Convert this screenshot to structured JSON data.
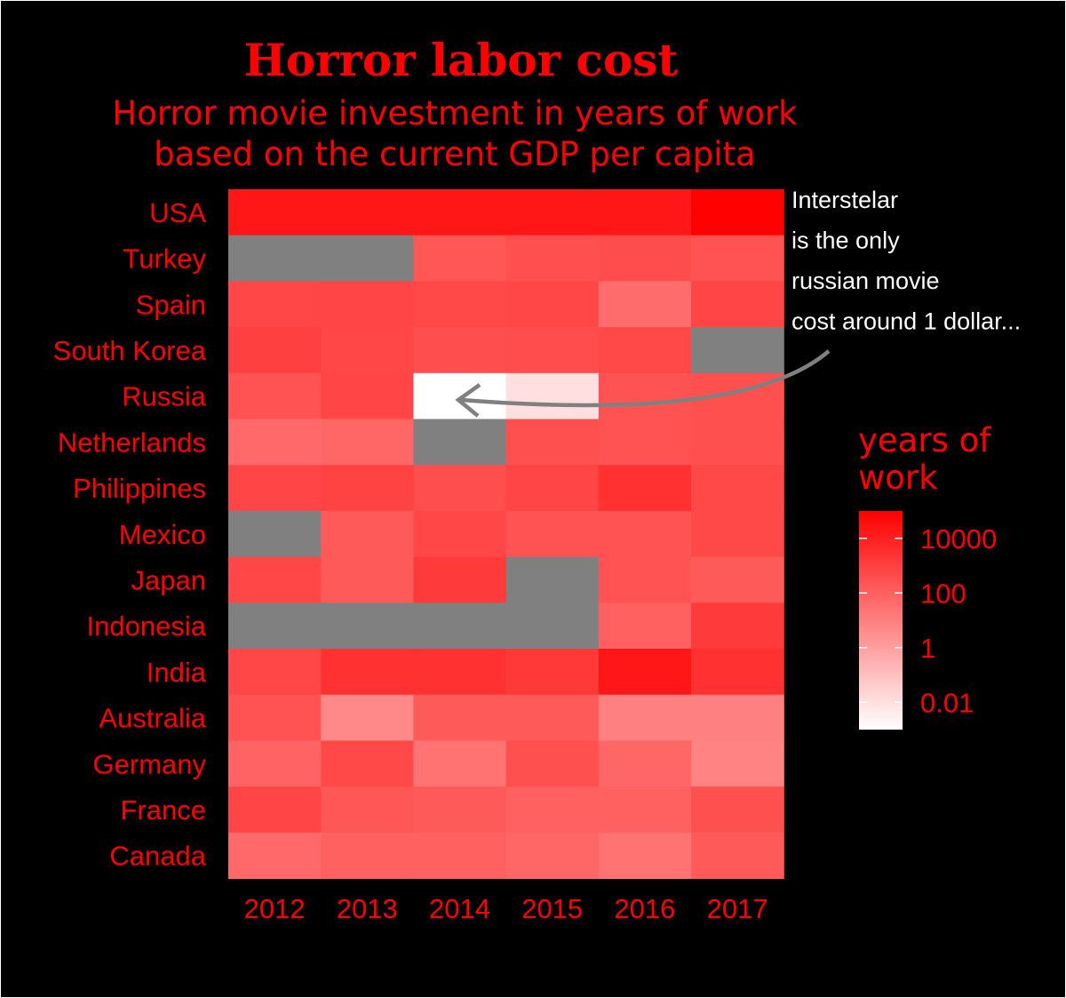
{
  "chart_data": {
    "type": "heatmap",
    "title": "Horror labor cost",
    "subtitle_lines": [
      "Horror movie investment in years of work",
      "based on the current GDP per capita"
    ],
    "x_categories": [
      "2012",
      "2013",
      "2014",
      "2015",
      "2016",
      "2017"
    ],
    "y_categories": [
      "USA",
      "Turkey",
      "Spain",
      "South Korea",
      "Russia",
      "Netherlands",
      "Philippines",
      "Mexico",
      "Japan",
      "Indonesia",
      "India",
      "Australia",
      "Germany",
      "France",
      "Canada"
    ],
    "values": [
      [
        20000,
        20000,
        20000,
        20000,
        20000,
        90000
      ],
      [
        null,
        null,
        200,
        300,
        400,
        250
      ],
      [
        600,
        700,
        500,
        600,
        40,
        700
      ],
      [
        1000,
        600,
        350,
        400,
        500,
        null
      ],
      [
        250,
        700,
        0.001,
        0.01,
        250,
        300
      ],
      [
        50,
        60,
        null,
        300,
        250,
        300
      ],
      [
        700,
        800,
        350,
        700,
        3000,
        500
      ],
      [
        null,
        150,
        600,
        250,
        250,
        500
      ],
      [
        600,
        150,
        1500,
        null,
        250,
        150
      ],
      [
        null,
        null,
        null,
        null,
        100,
        1500
      ],
      [
        600,
        3000,
        3000,
        1800,
        20000,
        3000
      ],
      [
        250,
        5,
        150,
        150,
        10,
        10
      ],
      [
        80,
        500,
        25,
        300,
        60,
        8
      ],
      [
        700,
        200,
        150,
        100,
        100,
        300
      ],
      [
        50,
        100,
        100,
        60,
        25,
        150
      ]
    ],
    "scale": "log10",
    "color_low": "#ffffff",
    "color_high": "#ff0000",
    "missing_color": "#808080",
    "legend": {
      "title_lines": [
        "years of",
        " work"
      ],
      "ticks": [
        "10000",
        "100",
        "1",
        "0.01"
      ],
      "range": [
        0.001,
        100000
      ],
      "placement": "right"
    },
    "annotation": {
      "lines": [
        "Interstelar",
        "is the only",
        "russian movie",
        "cost around 1 dollar..."
      ]
    }
  },
  "colors": {
    "background": "#000000",
    "text": "#ff0000",
    "annotation_text": "#ffffff",
    "arrow": "#808080"
  }
}
